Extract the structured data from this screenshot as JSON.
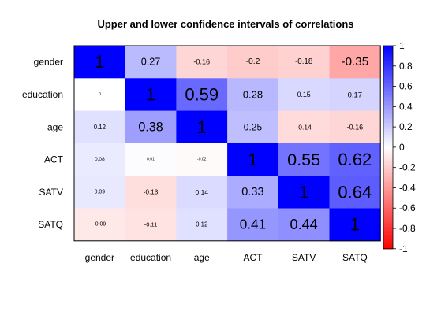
{
  "chart_data": {
    "type": "heatmap",
    "title": "Upper and lower confidence intervals of correlations",
    "row_labels": [
      "gender",
      "education",
      "age",
      "ACT",
      "SATV",
      "SATQ"
    ],
    "col_labels": [
      "gender",
      "education",
      "age",
      "ACT",
      "SATV",
      "SATQ"
    ],
    "values": [
      [
        1,
        0.27,
        -0.16,
        -0.2,
        -0.18,
        -0.35
      ],
      [
        0,
        1,
        0.59,
        0.28,
        0.15,
        0.17
      ],
      [
        0.12,
        0.38,
        1,
        0.25,
        -0.14,
        -0.16
      ],
      [
        0.08,
        0.01,
        -0.02,
        1,
        0.55,
        0.62
      ],
      [
        0.09,
        -0.13,
        0.14,
        0.33,
        1,
        0.64
      ],
      [
        -0.09,
        -0.11,
        0.12,
        0.41,
        0.44,
        1
      ]
    ],
    "color_scale": {
      "min": -1,
      "max": 1,
      "low_color": "#ff0000",
      "mid_color": "#ffffff",
      "high_color": "#0000ff"
    },
    "legend": {
      "position": "right",
      "ticks": [
        "1",
        "0.8",
        "0.6",
        "0.4",
        "0.2",
        "0",
        "-0.2",
        "-0.4",
        "-0.6",
        "-0.8",
        "-1"
      ],
      "tick_values": [
        1,
        0.8,
        0.6,
        0.4,
        0.2,
        0,
        -0.2,
        -0.4,
        -0.6,
        -0.8,
        -1
      ]
    }
  }
}
